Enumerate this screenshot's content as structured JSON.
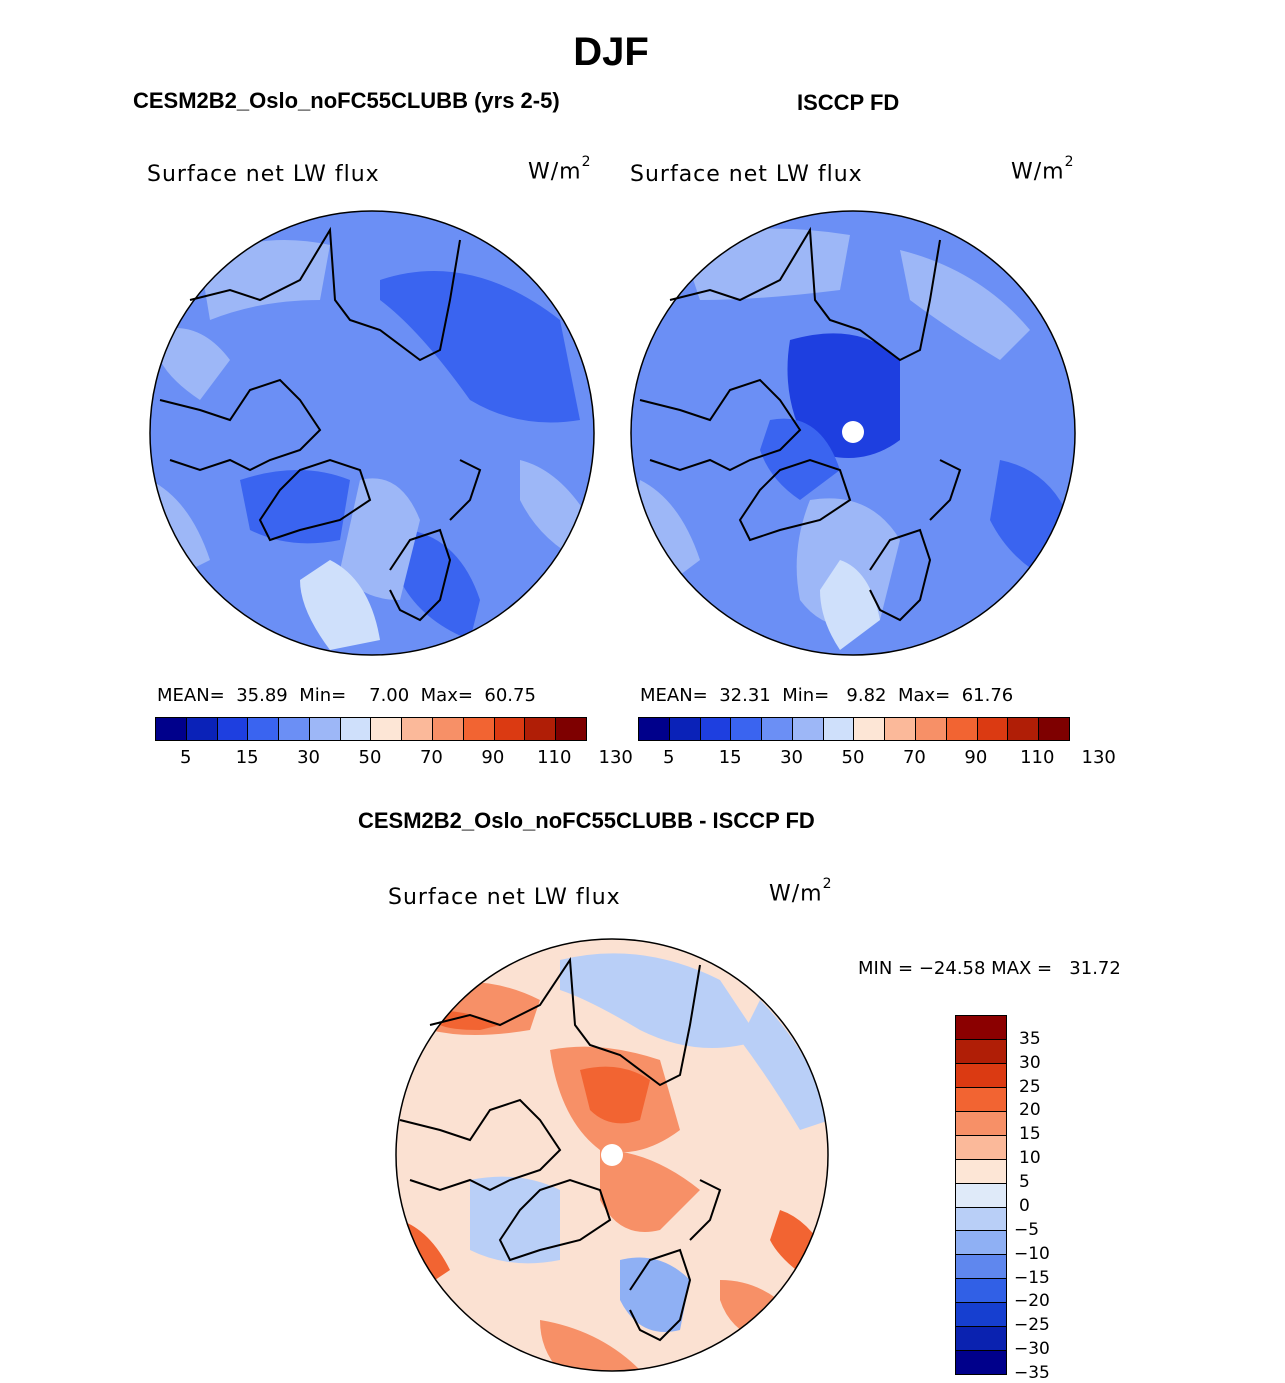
{
  "title": "DJF",
  "panels": [
    {
      "heading": "CESM2B2_Oslo_noFC55CLUBB (yrs 2-5)",
      "label": "Surface net LW flux",
      "units": "W/m",
      "units_exp": "2",
      "stats": {
        "mean_label": "MEAN=",
        "mean": "35.89",
        "min_label": "Min=",
        "min": "7.00",
        "max_label": "Max=",
        "max": "60.75"
      }
    },
    {
      "heading": "ISCCP FD",
      "label": "Surface net LW flux",
      "units": "W/m",
      "units_exp": "2",
      "stats": {
        "mean_label": "MEAN=",
        "mean": "32.31",
        "min_label": "Min=",
        "min": "9.82",
        "max_label": "Max=",
        "max": "61.76"
      }
    },
    {
      "heading": "CESM2B2_Oslo_noFC55CLUBB - ISCCP FD",
      "label": "Surface net LW flux",
      "units": "W/m",
      "units_exp": "2",
      "minmax": "MIN = −24.58 MAX =   31.72"
    }
  ],
  "abs_colorbar": {
    "colors": [
      "#00008b",
      "#0a22b8",
      "#1e3fe0",
      "#3a64f0",
      "#6b8ff5",
      "#9db7f7",
      "#cfe0fb",
      "#fde6d6",
      "#fbb99a",
      "#f79067",
      "#f26432",
      "#db3a12",
      "#b01e06",
      "#7e0000"
    ],
    "tick_labels": [
      "5",
      "15",
      "30",
      "50",
      "70",
      "90",
      "110",
      "130"
    ]
  },
  "diff_colorbar": {
    "colors": [
      "#8b0000",
      "#b01e06",
      "#db3a12",
      "#f26432",
      "#f79067",
      "#fbb99a",
      "#fde6d6",
      "#dfeaf9",
      "#b9cff7",
      "#8fb0f4",
      "#5f87ee",
      "#3160e6",
      "#163fd0",
      "#0a22b0",
      "#00008b"
    ],
    "tick_labels": [
      "35",
      "30",
      "25",
      "20",
      "15",
      "10",
      "5",
      "0",
      "−5",
      "−10",
      "−15",
      "−20",
      "−25",
      "−30",
      "−35"
    ]
  }
}
